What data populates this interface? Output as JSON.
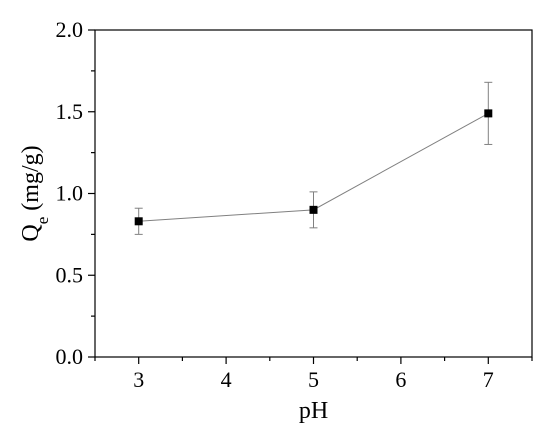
{
  "chart_data": {
    "type": "scatter",
    "x": [
      3,
      5,
      7
    ],
    "y": [
      0.83,
      0.9,
      1.49
    ],
    "yerr": [
      0.08,
      0.11,
      0.19
    ],
    "xlabel": "pH",
    "ylabel": {
      "main": "Q",
      "sub": "e",
      "unit": " (mg/g)"
    },
    "xlim": [
      2.5,
      7.5
    ],
    "ylim": [
      0.0,
      2.0
    ],
    "xticks": [
      3,
      4,
      5,
      6,
      7
    ],
    "yticks": [
      "0.0",
      "0.5",
      "1.0",
      "1.5",
      "2.0"
    ],
    "grid": false,
    "line_color": "#808080",
    "marker_color": "#000000"
  }
}
